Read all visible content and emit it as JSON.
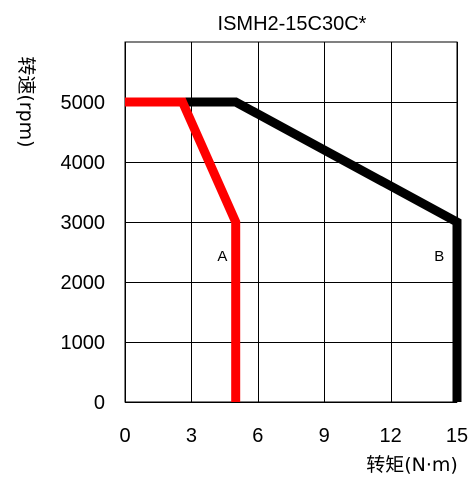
{
  "chart_data": {
    "type": "line",
    "title": "ISMH2-15C30C*",
    "xlabel": "转矩(N·m)",
    "ylabel": "转速(rpm)",
    "xlim": [
      0,
      15
    ],
    "ylim": [
      0,
      5000
    ],
    "xticks": [
      0,
      3,
      6,
      9,
      12,
      15
    ],
    "yticks": [
      0,
      1000,
      2000,
      3000,
      4000,
      5000
    ],
    "xtick_labels": [
      "0",
      "3",
      "6",
      "9",
      "12",
      "15"
    ],
    "ytick_labels": [
      "0",
      "1000",
      "2000",
      "3000",
      "4000",
      "5000"
    ],
    "grid": true,
    "series": [
      {
        "name": "B",
        "color": "#000000",
        "points": [
          {
            "x": 0,
            "y": 5000
          },
          {
            "x": 5,
            "y": 5000
          },
          {
            "x": 15,
            "y": 3000
          },
          {
            "x": 15,
            "y": 0
          }
        ],
        "label_at": {
          "x": 14.2,
          "y": 2350
        }
      },
      {
        "name": "A",
        "color": "#ff0000",
        "points": [
          {
            "x": 0,
            "y": 5000
          },
          {
            "x": 2.6,
            "y": 5000
          },
          {
            "x": 5,
            "y": 3000
          },
          {
            "x": 5,
            "y": 0
          }
        ],
        "label_at": {
          "x": 4.4,
          "y": 2350
        }
      }
    ]
  }
}
